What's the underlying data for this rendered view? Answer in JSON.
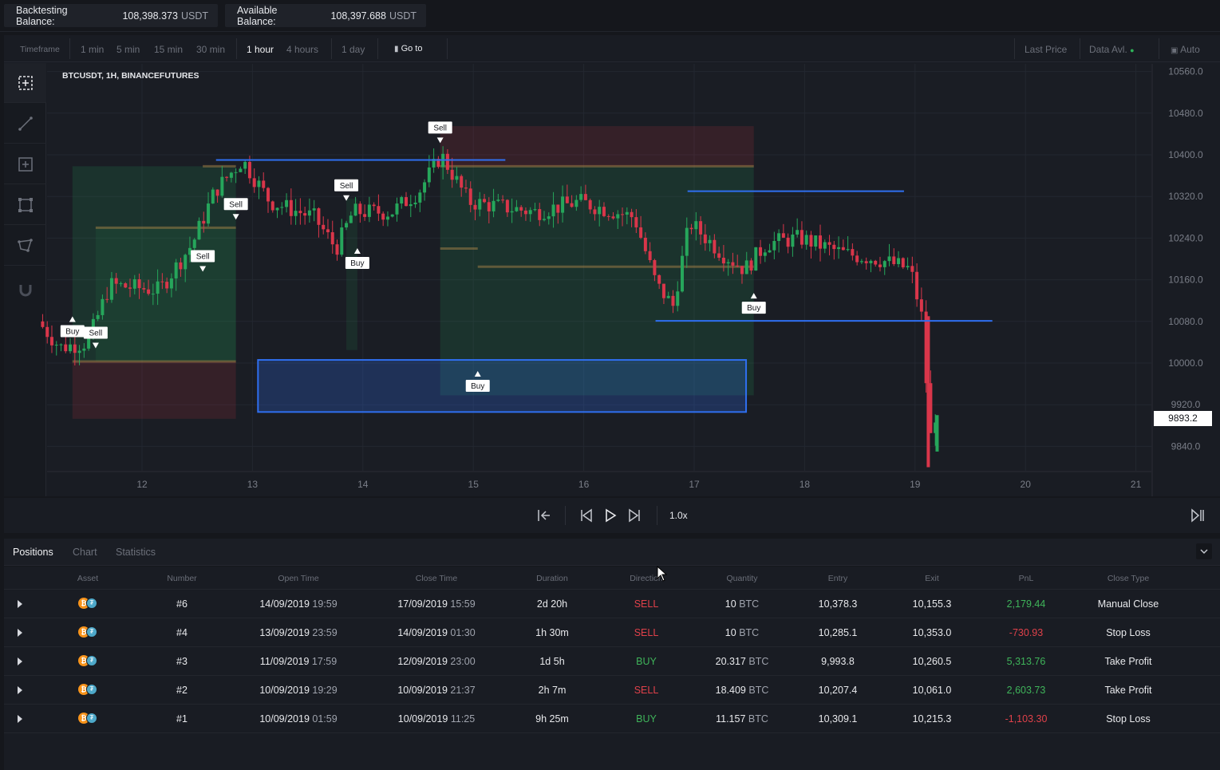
{
  "balances": {
    "backtesting": {
      "label": "Backtesting Balance:",
      "value": "108,398.373",
      "currency": "USDT"
    },
    "available": {
      "label": "Available Balance:",
      "value": "108,397.688",
      "currency": "USDT"
    }
  },
  "timeframe_bar": {
    "label": "Timeframe",
    "options": [
      "1 min",
      "5 min",
      "15 min",
      "30 min",
      "1 hour",
      "4 hours",
      "1 day"
    ],
    "active": "1 hour",
    "goto_label": "Go to",
    "last_price_label": "Last Price",
    "data_avl_label": "Data Avl.",
    "auto_label": "Auto"
  },
  "chart": {
    "symbol_label": "BTCUSDT, 1H, BINANCEFUTURES",
    "current_price": "9893.2",
    "colors": {
      "up": "#26a65b",
      "down": "#d9364a",
      "line": "#2f6ff0"
    }
  },
  "chart_data": {
    "type": "candlestick",
    "symbol": "BTCUSDT",
    "timeframe": "1H",
    "exchange": "BINANCEFUTURES",
    "x_ticks": [
      "12",
      "13",
      "14",
      "15",
      "16",
      "17",
      "18",
      "19",
      "20",
      "21"
    ],
    "y_ticks": [
      "10560.0",
      "10480.0",
      "10400.0",
      "10320.0",
      "10240.0",
      "10160.0",
      "10080.0",
      "10000.0",
      "9920.0",
      "9840.0"
    ],
    "ylim": [
      9790,
      10570
    ],
    "last_price": 9893.2,
    "markers": [
      {
        "label": "Buy",
        "day": 11.37,
        "price": 10085
      },
      {
        "label": "Sell",
        "day": 11.58,
        "price": 10033
      },
      {
        "label": "Sell",
        "day": 12.55,
        "price": 10180
      },
      {
        "label": "Sell",
        "day": 12.85,
        "price": 10280
      },
      {
        "label": "Sell",
        "day": 13.85,
        "price": 10316
      },
      {
        "label": "Buy",
        "day": 13.95,
        "price": 10216
      },
      {
        "label": "Sell",
        "day": 14.7,
        "price": 10427
      },
      {
        "label": "Buy",
        "day": 15.04,
        "price": 9980
      },
      {
        "label": "Buy",
        "day": 17.54,
        "price": 10130
      }
    ],
    "horizontal_lines": [
      {
        "from_day": 12.67,
        "to_day": 15.29,
        "price": 10390
      },
      {
        "from_day": 16.94,
        "to_day": 18.9,
        "price": 10330
      },
      {
        "from_day": 16.65,
        "to_day": 19.7,
        "price": 10081
      }
    ],
    "rectangle": {
      "from_day": 13.05,
      "to_day": 17.47,
      "top": 10006,
      "bottom": 9906
    }
  },
  "player": {
    "speed": "1.0x"
  },
  "bottom_tabs": {
    "items": [
      "Positions",
      "Chart",
      "Statistics"
    ],
    "active": "Positions"
  },
  "positions": {
    "headers": [
      "Asset",
      "Number",
      "Open Time",
      "Close Time",
      "Duration",
      "Direction",
      "Quantity",
      "Entry",
      "Exit",
      "PnL",
      "Close Type"
    ],
    "rows": [
      {
        "number": "#6",
        "open_date": "14/09/2019",
        "open_time": "19:59",
        "close_date": "17/09/2019",
        "close_time": "15:59",
        "duration": "2d 20h",
        "direction": "SELL",
        "qty": "10",
        "qty_unit": "BTC",
        "entry": "10,378.3",
        "exit": "10,155.3",
        "pnl": "2,179.44",
        "close_type": "Manual Close"
      },
      {
        "number": "#4",
        "open_date": "13/09/2019",
        "open_time": "23:59",
        "close_date": "14/09/2019",
        "close_time": "01:30",
        "duration": "1h 30m",
        "direction": "SELL",
        "qty": "10",
        "qty_unit": "BTC",
        "entry": "10,285.1",
        "exit": "10,353.0",
        "pnl": "-730.93",
        "close_type": "Stop Loss"
      },
      {
        "number": "#3",
        "open_date": "11/09/2019",
        "open_time": "17:59",
        "close_date": "12/09/2019",
        "close_time": "23:00",
        "duration": "1d 5h",
        "direction": "BUY",
        "qty": "20.317",
        "qty_unit": "BTC",
        "entry": "9,993.8",
        "exit": "10,260.5",
        "pnl": "5,313.76",
        "close_type": "Take Profit"
      },
      {
        "number": "#2",
        "open_date": "10/09/2019",
        "open_time": "19:29",
        "close_date": "10/09/2019",
        "close_time": "21:37",
        "duration": "2h 7m",
        "direction": "SELL",
        "qty": "18.409",
        "qty_unit": "BTC",
        "entry": "10,207.4",
        "exit": "10,061.0",
        "pnl": "2,603.73",
        "close_type": "Take Profit"
      },
      {
        "number": "#1",
        "open_date": "10/09/2019",
        "open_time": "01:59",
        "close_date": "10/09/2019",
        "close_time": "11:25",
        "duration": "9h 25m",
        "direction": "BUY",
        "qty": "11.157",
        "qty_unit": "BTC",
        "entry": "10,309.1",
        "exit": "10,215.3",
        "pnl": "-1,103.30",
        "close_type": "Stop Loss"
      }
    ]
  },
  "icons": [
    "crosshair-icon",
    "trendline-icon",
    "add-shape-icon",
    "rectangle-icon",
    "path-icon",
    "magnet-icon",
    "lock-icon",
    "chart-icon",
    "skip-start-icon",
    "step-back-icon",
    "play-icon",
    "step-forward-icon",
    "skip-end-icon",
    "chevron-down-icon",
    "btc-icon",
    "usdt-icon",
    "expand-row-icon",
    "cursor-icon"
  ]
}
